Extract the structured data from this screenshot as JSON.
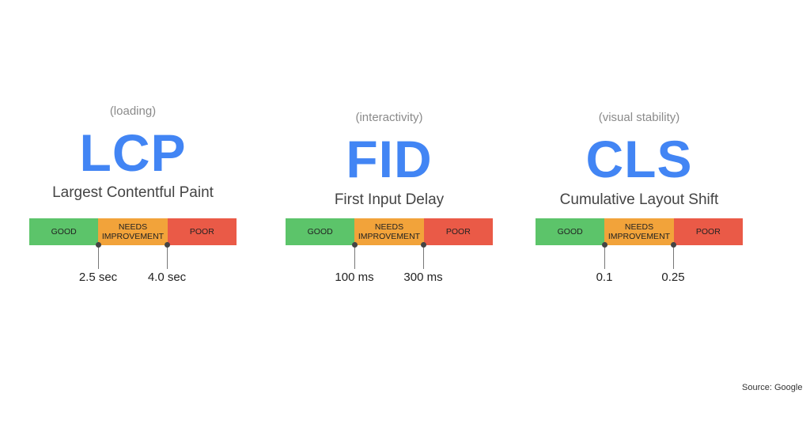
{
  "metrics": [
    {
      "context": "(loading)",
      "abbr": "LCP",
      "name": "Largest Contentful Paint",
      "thresholds": [
        "2.5 sec",
        "4.0 sec"
      ]
    },
    {
      "context": "(interactivity)",
      "abbr": "FID",
      "name": "First Input Delay",
      "thresholds": [
        "100 ms",
        "300 ms"
      ]
    },
    {
      "context": "(visual stability)",
      "abbr": "CLS",
      "name": "Cumulative Layout Shift",
      "thresholds": [
        "0.1",
        "0.25"
      ]
    }
  ],
  "segments": {
    "good": "GOOD",
    "needs_improvement": "NEEDS IMPROVEMENT",
    "poor": "POOR"
  },
  "colors": {
    "accent": "#4285f4",
    "good": "#5cc46a",
    "needs_improvement": "#f2a33a",
    "poor": "#ea5a47"
  },
  "source": "Source: Google"
}
